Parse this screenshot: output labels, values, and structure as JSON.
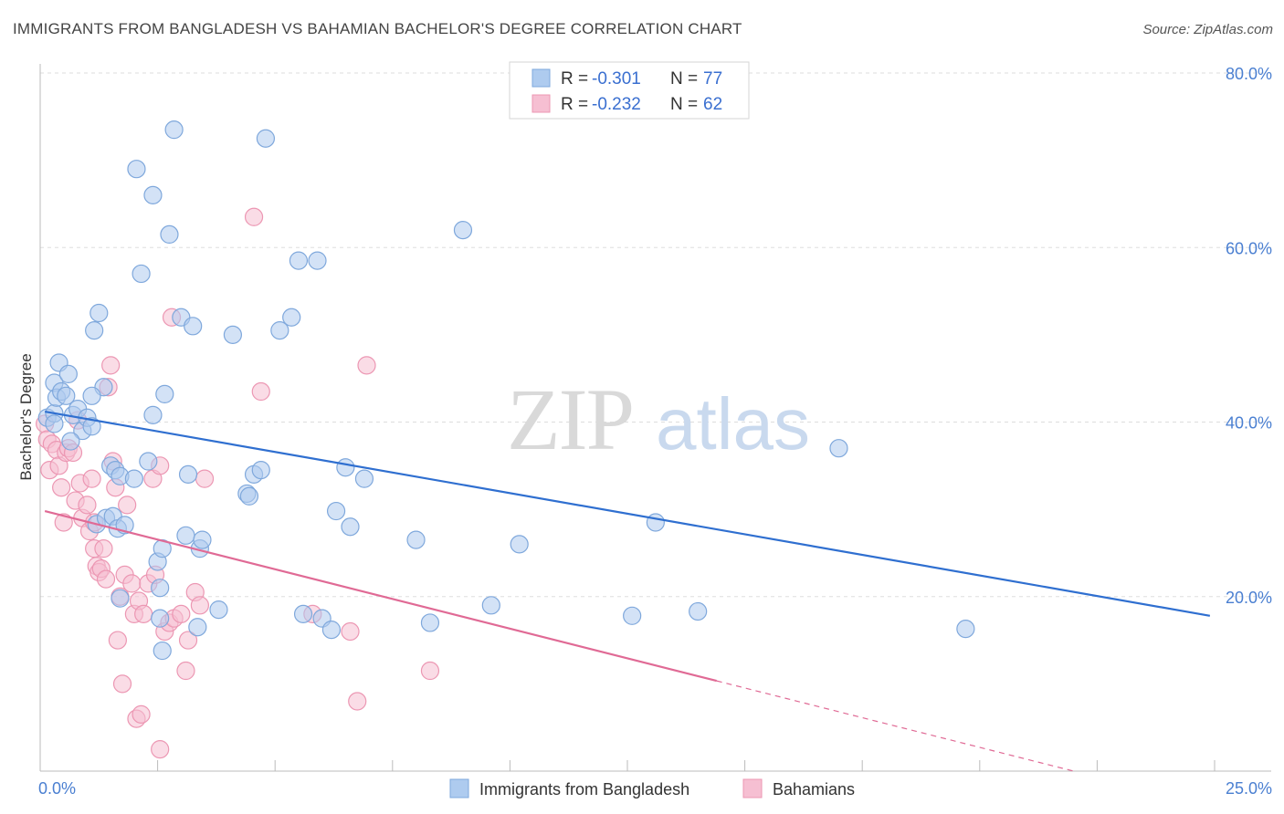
{
  "title": "IMMIGRANTS FROM BANGLADESH VS BAHAMIAN BACHELOR'S DEGREE CORRELATION CHART",
  "source": "Source: ZipAtlas.com",
  "watermark": {
    "zip": "ZIP",
    "atlas": "atlas"
  },
  "colors": {
    "blue_fill": "#aecbef",
    "blue_stroke": "#7fa8dc",
    "blue_line": "#2f6fd0",
    "pink_fill": "#f6bfd2",
    "pink_stroke": "#ec97b3",
    "pink_line": "#e06a95",
    "grid": "#dddddd",
    "tick_text": "#4a7fd1"
  },
  "legend": {
    "row1": {
      "r_label": "R = ",
      "r_value": "-0.301",
      "n_label": "N = ",
      "n_value": "77"
    },
    "row2": {
      "r_label": "R = ",
      "r_value": "-0.232",
      "n_label": "N = ",
      "n_value": "62"
    }
  },
  "chart_data": {
    "type": "scatter",
    "title": "IMMIGRANTS FROM BANGLADESH VS BAHAMIAN BACHELOR'S DEGREE CORRELATION CHART",
    "xlabel": "",
    "ylabel": "Bachelor's Degree",
    "xlim": [
      0,
      25
    ],
    "ylim": [
      0,
      80
    ],
    "x_tick_labels": {
      "left": "0.0%",
      "right": "25.0%"
    },
    "y_ticks": [
      20,
      40,
      60,
      80
    ],
    "y_tick_labels": [
      "20.0%",
      "40.0%",
      "60.0%",
      "80.0%"
    ],
    "series": [
      {
        "name": "Immigrants from Bangladesh",
        "trend": {
          "x0": 0.1,
          "y0": 41.2,
          "x1": 24.9,
          "y1": 17.8,
          "solid_to": 24.9
        },
        "points": [
          [
            0.15,
            40.5
          ],
          [
            0.3,
            41.0
          ],
          [
            0.3,
            44.5
          ],
          [
            0.35,
            42.8
          ],
          [
            0.4,
            46.8
          ],
          [
            0.45,
            43.5
          ],
          [
            0.55,
            43.0
          ],
          [
            0.6,
            45.5
          ],
          [
            0.7,
            40.8
          ],
          [
            0.8,
            41.5
          ],
          [
            0.9,
            39.0
          ],
          [
            1.0,
            40.5
          ],
          [
            1.1,
            39.5
          ],
          [
            1.15,
            50.5
          ],
          [
            1.25,
            52.5
          ],
          [
            1.35,
            44.0
          ],
          [
            1.5,
            35.0
          ],
          [
            1.6,
            34.5
          ],
          [
            1.7,
            33.8
          ],
          [
            0.65,
            37.8
          ],
          [
            1.2,
            28.3
          ],
          [
            1.4,
            29.0
          ],
          [
            1.55,
            29.2
          ],
          [
            1.65,
            27.8
          ],
          [
            1.7,
            19.8
          ],
          [
            1.8,
            28.2
          ],
          [
            2.0,
            33.5
          ],
          [
            2.15,
            57.0
          ],
          [
            2.05,
            69.0
          ],
          [
            2.4,
            66.0
          ],
          [
            2.3,
            35.5
          ],
          [
            2.4,
            40.8
          ],
          [
            2.5,
            24.0
          ],
          [
            2.55,
            21.0
          ],
          [
            2.6,
            25.5
          ],
          [
            2.65,
            43.2
          ],
          [
            2.75,
            61.5
          ],
          [
            2.85,
            73.5
          ],
          [
            2.55,
            17.5
          ],
          [
            3.0,
            52.0
          ],
          [
            3.1,
            27.0
          ],
          [
            3.15,
            34.0
          ],
          [
            3.25,
            51.0
          ],
          [
            3.4,
            25.5
          ],
          [
            3.45,
            26.5
          ],
          [
            3.35,
            16.5
          ],
          [
            3.8,
            18.5
          ],
          [
            4.1,
            50.0
          ],
          [
            4.4,
            31.8
          ],
          [
            4.45,
            31.5
          ],
          [
            4.55,
            34.0
          ],
          [
            4.7,
            34.5
          ],
          [
            4.8,
            72.5
          ],
          [
            5.1,
            50.5
          ],
          [
            5.35,
            52.0
          ],
          [
            5.5,
            58.5
          ],
          [
            5.6,
            18.0
          ],
          [
            5.9,
            58.5
          ],
          [
            6.0,
            17.5
          ],
          [
            6.2,
            16.2
          ],
          [
            6.3,
            29.8
          ],
          [
            6.5,
            34.8
          ],
          [
            6.6,
            28.0
          ],
          [
            6.9,
            33.5
          ],
          [
            8.0,
            26.5
          ],
          [
            8.3,
            17.0
          ],
          [
            9.0,
            62.0
          ],
          [
            9.6,
            19.0
          ],
          [
            10.2,
            26.0
          ],
          [
            12.6,
            17.8
          ],
          [
            13.1,
            28.5
          ],
          [
            14.0,
            18.3
          ],
          [
            17.0,
            37.0
          ],
          [
            19.7,
            16.3
          ],
          [
            2.6,
            13.8
          ],
          [
            0.3,
            39.8
          ],
          [
            1.1,
            43.0
          ]
        ]
      },
      {
        "name": "Bahamians",
        "trend": {
          "x0": 0.1,
          "y0": 29.8,
          "x1": 22.0,
          "y1": 0.0,
          "solid_to": 14.4
        },
        "points": [
          [
            0.1,
            39.8
          ],
          [
            0.15,
            38.0
          ],
          [
            0.2,
            34.5
          ],
          [
            0.25,
            37.5
          ],
          [
            0.35,
            36.8
          ],
          [
            0.4,
            35.0
          ],
          [
            0.45,
            32.5
          ],
          [
            0.5,
            28.5
          ],
          [
            0.55,
            36.5
          ],
          [
            0.6,
            37.0
          ],
          [
            0.7,
            36.5
          ],
          [
            0.75,
            31.0
          ],
          [
            0.8,
            40.2
          ],
          [
            0.85,
            33.0
          ],
          [
            0.9,
            29.0
          ],
          [
            1.0,
            30.5
          ],
          [
            1.05,
            27.5
          ],
          [
            1.1,
            33.5
          ],
          [
            1.15,
            25.5
          ],
          [
            1.2,
            23.5
          ],
          [
            1.25,
            22.8
          ],
          [
            1.3,
            23.2
          ],
          [
            1.35,
            25.5
          ],
          [
            1.4,
            22.0
          ],
          [
            1.45,
            44.0
          ],
          [
            1.5,
            46.5
          ],
          [
            1.55,
            35.5
          ],
          [
            1.6,
            32.5
          ],
          [
            1.65,
            15.0
          ],
          [
            1.7,
            20.0
          ],
          [
            1.75,
            10.0
          ],
          [
            1.8,
            22.5
          ],
          [
            1.85,
            30.5
          ],
          [
            1.95,
            21.5
          ],
          [
            2.0,
            18.0
          ],
          [
            2.05,
            6.0
          ],
          [
            2.1,
            19.5
          ],
          [
            2.15,
            6.5
          ],
          [
            2.2,
            18.0
          ],
          [
            2.3,
            21.5
          ],
          [
            2.4,
            33.5
          ],
          [
            2.45,
            22.5
          ],
          [
            2.55,
            2.5
          ],
          [
            2.65,
            16.0
          ],
          [
            2.75,
            17.0
          ],
          [
            2.8,
            52.0
          ],
          [
            2.85,
            17.5
          ],
          [
            3.0,
            18.0
          ],
          [
            3.1,
            11.5
          ],
          [
            3.15,
            15.0
          ],
          [
            3.3,
            20.5
          ],
          [
            3.4,
            19.0
          ],
          [
            3.5,
            33.5
          ],
          [
            4.55,
            63.5
          ],
          [
            4.7,
            43.5
          ],
          [
            5.8,
            18.0
          ],
          [
            6.6,
            16.0
          ],
          [
            6.75,
            8.0
          ],
          [
            6.95,
            46.5
          ],
          [
            8.3,
            11.5
          ],
          [
            2.55,
            35.0
          ],
          [
            1.15,
            28.5
          ]
        ]
      }
    ]
  },
  "bottom_legend": {
    "item1": "Immigrants from Bangladesh",
    "item2": "Bahamians"
  }
}
